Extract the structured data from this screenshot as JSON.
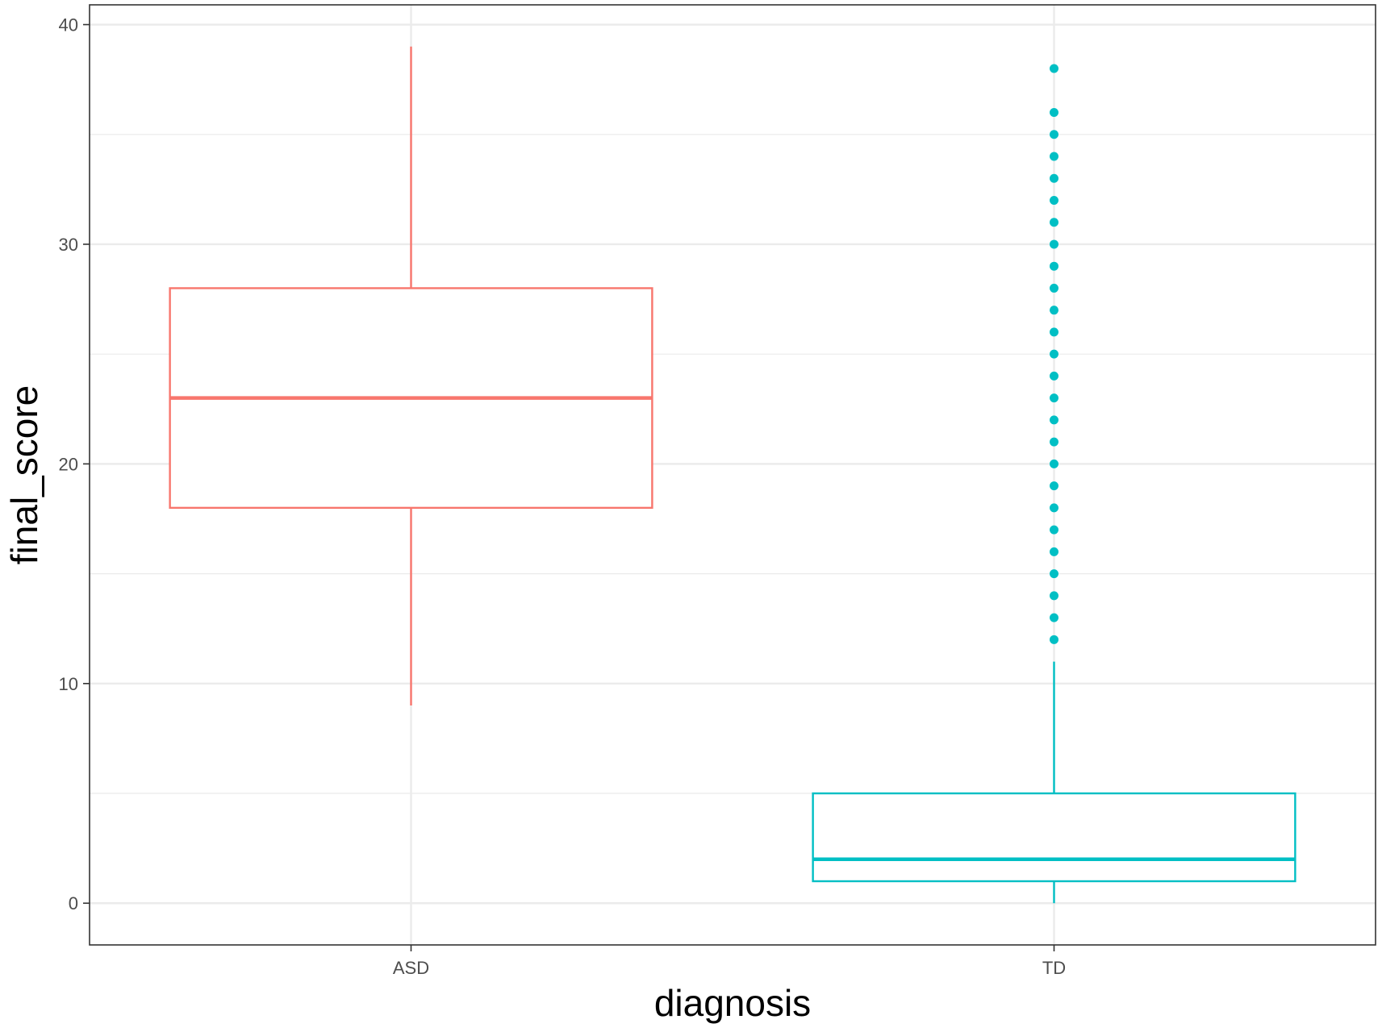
{
  "chart_data": {
    "type": "boxplot",
    "xlabel": "diagnosis",
    "ylabel": "final_score",
    "ylim": [
      -1.9,
      40.9
    ],
    "y_ticks": [
      0,
      10,
      20,
      30,
      40
    ],
    "grid": true,
    "categories": [
      "ASD",
      "TD"
    ],
    "boxes": [
      {
        "category": "ASD",
        "color": "#f8766d",
        "whisker_low": 9,
        "q1": 18,
        "median": 23,
        "q3": 28,
        "whisker_high": 39,
        "outliers": []
      },
      {
        "category": "TD",
        "color": "#00bfc4",
        "whisker_low": 0,
        "q1": 1,
        "median": 2,
        "q3": 5,
        "whisker_high": 11,
        "outliers": [
          12,
          13,
          14,
          15,
          16,
          17,
          18,
          19,
          20,
          21,
          22,
          23,
          24,
          25,
          26,
          27,
          28,
          29,
          30,
          31,
          32,
          33,
          34,
          35,
          36,
          38
        ]
      }
    ]
  }
}
